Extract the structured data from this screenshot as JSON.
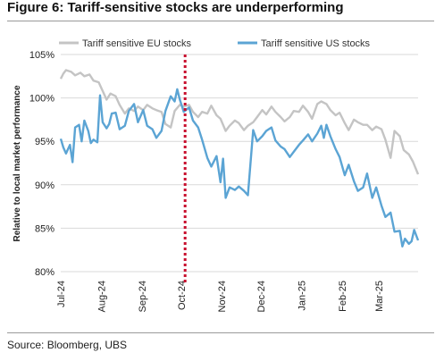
{
  "figure": {
    "title": "Figure 6: Tariff-sensitive stocks are underperforming",
    "source": "Source: Bloomberg, UBS"
  },
  "chart_data": {
    "type": "line",
    "title": "Figure 6: Tariff-sensitive stocks are underperforming",
    "ylabel": "Relative to local market performance",
    "xlabel": "",
    "ylim": [
      80,
      105
    ],
    "yticks": [
      80,
      85,
      90,
      95,
      100,
      105
    ],
    "ytick_labels": [
      "80%",
      "85%",
      "90%",
      "95%",
      "100%",
      "105%"
    ],
    "xlim": [
      "2024-07-01",
      "2025-03-31"
    ],
    "xticks": [
      "2024-07-01",
      "2024-08-01",
      "2024-09-01",
      "2024-10-01",
      "2024-11-01",
      "2024-12-01",
      "2025-01-01",
      "2025-02-01",
      "2025-03-01"
    ],
    "xtick_labels": [
      "Jul-24",
      "Aug-24",
      "Sep-24",
      "Oct-24",
      "Nov-24",
      "Dec-24",
      "Jan-25",
      "Feb-25",
      "Mar-25"
    ],
    "grid": "horizontal",
    "legend_position": "top",
    "vline": {
      "x": "2024-10-04",
      "color": "#c8102e",
      "style": "dotted"
    },
    "series": [
      {
        "name": "Tariff sensitive EU stocks",
        "color": "#c4c4c4",
        "points": [
          [
            "2024-07-01",
            102.2
          ],
          [
            "2024-07-03",
            102.8
          ],
          [
            "2024-07-05",
            103.2
          ],
          [
            "2024-07-09",
            103.0
          ],
          [
            "2024-07-12",
            102.6
          ],
          [
            "2024-07-16",
            102.9
          ],
          [
            "2024-07-19",
            102.5
          ],
          [
            "2024-07-23",
            102.7
          ],
          [
            "2024-07-26",
            102.0
          ],
          [
            "2024-07-30",
            101.8
          ],
          [
            "2024-08-02",
            100.8
          ],
          [
            "2024-08-05",
            99.8
          ],
          [
            "2024-08-08",
            100.5
          ],
          [
            "2024-08-12",
            100.2
          ],
          [
            "2024-08-15",
            99.2
          ],
          [
            "2024-08-19",
            98.2
          ],
          [
            "2024-08-22",
            98.8
          ],
          [
            "2024-08-26",
            98.5
          ],
          [
            "2024-08-29",
            99.0
          ],
          [
            "2024-09-02",
            98.6
          ],
          [
            "2024-09-05",
            99.2
          ],
          [
            "2024-09-09",
            98.8
          ],
          [
            "2024-09-12",
            98.6
          ],
          [
            "2024-09-16",
            98.4
          ],
          [
            "2024-09-19",
            97.0
          ],
          [
            "2024-09-23",
            96.6
          ],
          [
            "2024-09-26",
            98.5
          ],
          [
            "2024-09-30",
            99.2
          ],
          [
            "2024-10-03",
            99.0
          ],
          [
            "2024-10-07",
            99.2
          ],
          [
            "2024-10-10",
            98.4
          ],
          [
            "2024-10-14",
            97.8
          ],
          [
            "2024-10-17",
            98.4
          ],
          [
            "2024-10-21",
            98.2
          ],
          [
            "2024-10-24",
            99.1
          ],
          [
            "2024-10-28",
            98.0
          ],
          [
            "2024-10-31",
            97.6
          ],
          [
            "2024-11-04",
            96.2
          ],
          [
            "2024-11-07",
            96.8
          ],
          [
            "2024-11-11",
            97.4
          ],
          [
            "2024-11-14",
            97.1
          ],
          [
            "2024-11-18",
            96.3
          ],
          [
            "2024-11-21",
            96.8
          ],
          [
            "2024-11-25",
            97.2
          ],
          [
            "2024-11-28",
            97.8
          ],
          [
            "2024-12-02",
            98.6
          ],
          [
            "2024-12-05",
            98.1
          ],
          [
            "2024-12-09",
            99.0
          ],
          [
            "2024-12-12",
            98.4
          ],
          [
            "2024-12-16",
            97.8
          ],
          [
            "2024-12-19",
            97.3
          ],
          [
            "2024-12-23",
            97.8
          ],
          [
            "2024-12-26",
            98.5
          ],
          [
            "2024-12-30",
            98.4
          ],
          [
            "2025-01-02",
            99.1
          ],
          [
            "2025-01-06",
            98.4
          ],
          [
            "2025-01-09",
            97.6
          ],
          [
            "2025-01-13",
            99.3
          ],
          [
            "2025-01-16",
            99.6
          ],
          [
            "2025-01-20",
            99.3
          ],
          [
            "2025-01-23",
            98.6
          ],
          [
            "2025-01-27",
            98.0
          ],
          [
            "2025-01-30",
            98.3
          ],
          [
            "2025-02-03",
            97.1
          ],
          [
            "2025-02-06",
            96.3
          ],
          [
            "2025-02-10",
            97.5
          ],
          [
            "2025-02-13",
            97.2
          ],
          [
            "2025-02-17",
            96.9
          ],
          [
            "2025-02-20",
            96.9
          ],
          [
            "2025-02-24",
            96.3
          ],
          [
            "2025-02-27",
            96.7
          ],
          [
            "2025-03-03",
            96.4
          ],
          [
            "2025-03-06",
            95.2
          ],
          [
            "2025-03-10",
            93.1
          ],
          [
            "2025-03-13",
            96.2
          ],
          [
            "2025-03-17",
            95.6
          ],
          [
            "2025-03-20",
            94.0
          ],
          [
            "2025-03-24",
            93.5
          ],
          [
            "2025-03-27",
            92.7
          ],
          [
            "2025-03-31",
            91.2
          ]
        ]
      },
      {
        "name": "Tariff sensitive US stocks",
        "color": "#5ba4d4",
        "points": [
          [
            "2024-07-01",
            95.3
          ],
          [
            "2024-07-03",
            94.3
          ],
          [
            "2024-07-05",
            93.6
          ],
          [
            "2024-07-08",
            94.6
          ],
          [
            "2024-07-10",
            92.6
          ],
          [
            "2024-07-12",
            96.6
          ],
          [
            "2024-07-15",
            96.9
          ],
          [
            "2024-07-17",
            95.0
          ],
          [
            "2024-07-19",
            97.4
          ],
          [
            "2024-07-22",
            96.2
          ],
          [
            "2024-07-24",
            94.8
          ],
          [
            "2024-07-26",
            95.2
          ],
          [
            "2024-07-29",
            94.9
          ],
          [
            "2024-07-31",
            100.3
          ],
          [
            "2024-08-02",
            97.2
          ],
          [
            "2024-08-05",
            96.5
          ],
          [
            "2024-08-07",
            97.0
          ],
          [
            "2024-08-09",
            98.2
          ],
          [
            "2024-08-12",
            98.3
          ],
          [
            "2024-08-15",
            96.4
          ],
          [
            "2024-08-19",
            96.8
          ],
          [
            "2024-08-22",
            98.5
          ],
          [
            "2024-08-26",
            99.3
          ],
          [
            "2024-08-29",
            97.2
          ],
          [
            "2024-09-02",
            98.6
          ],
          [
            "2024-09-05",
            96.8
          ],
          [
            "2024-09-09",
            96.4
          ],
          [
            "2024-09-12",
            95.4
          ],
          [
            "2024-09-16",
            96.2
          ],
          [
            "2024-09-19",
            98.5
          ],
          [
            "2024-09-23",
            100.2
          ],
          [
            "2024-09-26",
            99.6
          ],
          [
            "2024-09-28",
            101.0
          ],
          [
            "2024-09-30",
            99.8
          ],
          [
            "2024-10-03",
            98.4
          ],
          [
            "2024-10-07",
            98.9
          ],
          [
            "2024-10-10",
            97.4
          ],
          [
            "2024-10-14",
            96.6
          ],
          [
            "2024-10-17",
            95.2
          ],
          [
            "2024-10-21",
            93.1
          ],
          [
            "2024-10-24",
            92.1
          ],
          [
            "2024-10-28",
            93.3
          ],
          [
            "2024-10-31",
            90.3
          ],
          [
            "2024-11-02",
            93.0
          ],
          [
            "2024-11-04",
            88.5
          ],
          [
            "2024-11-07",
            89.7
          ],
          [
            "2024-11-11",
            89.4
          ],
          [
            "2024-11-14",
            89.8
          ],
          [
            "2024-11-18",
            89.3
          ],
          [
            "2024-11-21",
            88.8
          ],
          [
            "2024-11-25",
            96.3
          ],
          [
            "2024-11-28",
            95.0
          ],
          [
            "2024-12-02",
            95.6
          ],
          [
            "2024-12-05",
            96.2
          ],
          [
            "2024-12-09",
            96.6
          ],
          [
            "2024-12-12",
            95.1
          ],
          [
            "2024-12-16",
            94.4
          ],
          [
            "2024-12-19",
            94.1
          ],
          [
            "2024-12-23",
            93.2
          ],
          [
            "2024-12-26",
            93.8
          ],
          [
            "2024-12-30",
            94.6
          ],
          [
            "2025-01-02",
            95.1
          ],
          [
            "2025-01-06",
            95.8
          ],
          [
            "2025-01-09",
            95.0
          ],
          [
            "2025-01-13",
            95.9
          ],
          [
            "2025-01-16",
            96.8
          ],
          [
            "2025-01-18",
            95.4
          ],
          [
            "2025-01-20",
            96.9
          ],
          [
            "2025-01-23",
            95.6
          ],
          [
            "2025-01-27",
            94.1
          ],
          [
            "2025-01-30",
            93.2
          ],
          [
            "2025-02-03",
            91.1
          ],
          [
            "2025-02-06",
            92.3
          ],
          [
            "2025-02-10",
            90.4
          ],
          [
            "2025-02-13",
            89.3
          ],
          [
            "2025-02-17",
            89.7
          ],
          [
            "2025-02-20",
            91.3
          ],
          [
            "2025-02-24",
            88.5
          ],
          [
            "2025-02-27",
            89.7
          ],
          [
            "2025-03-03",
            87.6
          ],
          [
            "2025-03-06",
            86.3
          ],
          [
            "2025-03-10",
            86.8
          ],
          [
            "2025-03-13",
            84.6
          ],
          [
            "2025-03-17",
            84.7
          ],
          [
            "2025-03-19",
            82.9
          ],
          [
            "2025-03-21",
            83.8
          ],
          [
            "2025-03-24",
            83.2
          ],
          [
            "2025-03-26",
            83.5
          ],
          [
            "2025-03-28",
            84.8
          ],
          [
            "2025-03-31",
            83.6
          ]
        ]
      }
    ]
  }
}
